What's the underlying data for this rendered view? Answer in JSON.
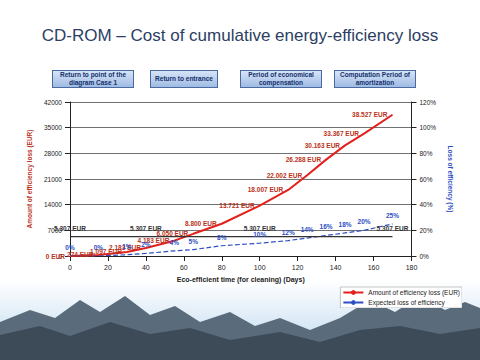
{
  "buttons": [
    "Return to point of the diagram Case 1",
    "Return to entrance",
    "Period of economical compensation",
    "Computation Period of amortization"
  ],
  "chart_data": {
    "type": "line",
    "title": "CD-ROM – Cost of cumulative energy-efficiency loss",
    "x_label": "Eco-efficient time (for cleaning) (Days)",
    "y_label": "Amount of efficiency loss (EUR)",
    "y2_label": "Loss of efficiency (%)",
    "xlim": [
      0,
      180
    ],
    "xticks": [
      0,
      20,
      40,
      60,
      80,
      100,
      120,
      140,
      160,
      180
    ],
    "ylim": [
      0,
      42000
    ],
    "yticks": [
      0,
      7000,
      14000,
      21000,
      28000,
      35000,
      42000
    ],
    "y2lim": [
      0,
      120
    ],
    "y2ticks": [
      {
        "value": 0,
        "label": "0%"
      },
      {
        "value": 20,
        "label": "20%"
      },
      {
        "value": 40,
        "label": "40%"
      },
      {
        "value": 60,
        "label": "60%"
      },
      {
        "value": 80,
        "label": "80%"
      },
      {
        "value": 100,
        "label": "100%"
      },
      {
        "value": 120,
        "label": "120%"
      }
    ],
    "grid": true,
    "legend": "lower right",
    "data_labels": true,
    "series": [
      {
        "name": "Amount of efficiency loss (EUR)",
        "color": "#e3201b",
        "marker": "none",
        "line_style": "solid",
        "x": [
          0,
          15,
          30,
          40,
          55,
          65,
          80,
          100,
          115,
          125,
          135,
          145,
          155,
          170
        ],
        "values": [
          0,
          274,
          1097,
          2183,
          4183,
          6050,
          8800,
          13721,
          18007,
          22002,
          26288,
          30163,
          33367,
          38527
        ],
        "value_labels": [
          "0 EUR",
          "274 EUR",
          "1.097 EUR",
          "2.183 EUR",
          "4.183 EUR",
          "6.050 EUR",
          "8.800 EUR",
          "13.721 EUR",
          "18.007 EUR",
          "22.002 EUR",
          "26.288 EUR",
          "30.163 EUR",
          "33.367 EUR",
          "38.527 EUR"
        ]
      },
      {
        "name": "Expected loss of efficiency",
        "color": "#2e4fc4",
        "marker": "none",
        "line_style": "dashed",
        "axis": "y2",
        "x": [
          0,
          15,
          30,
          40,
          55,
          65,
          80,
          100,
          115,
          125,
          135,
          145,
          155,
          170
        ],
        "values": [
          0,
          0,
          1,
          2,
          4,
          5,
          8,
          10,
          12,
          14,
          16,
          18,
          20,
          25
        ],
        "value_labels": [
          "0%",
          "0%",
          "1%",
          "2%",
          "4%",
          "5%",
          "8%",
          "10%",
          "12%",
          "14%",
          "16%",
          "18%",
          "20%",
          "25%"
        ]
      },
      {
        "color": "#333333",
        "marker": "none",
        "line_style": "solid",
        "x": [
          0,
          40,
          100,
          170
        ],
        "values": [
          5307,
          5307,
          5307,
          5307
        ],
        "value_labels": [
          "5.307 EUR",
          "5.307 EUR",
          "5.307 EUR",
          "5.307 EUR"
        ]
      }
    ]
  }
}
